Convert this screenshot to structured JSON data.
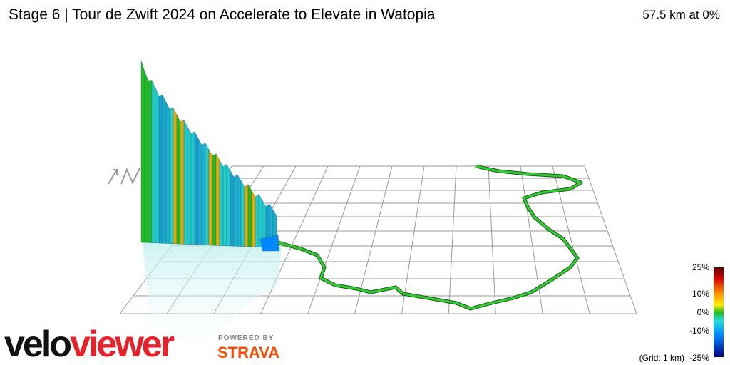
{
  "header": {
    "title": "Stage 6 | Tour de Zwift 2024 on Accelerate to Elevate in Watopia",
    "status": "57.5 km at 0%"
  },
  "legend": {
    "labels": [
      "25%",
      "10%",
      "0%",
      "-10%",
      "-25%"
    ],
    "grid_note": "(Grid: 1 km)"
  },
  "logo": {
    "velo": "velo",
    "viewer": "viewer",
    "powered_by": "POWERED BY",
    "strava": "STRAVA"
  }
}
